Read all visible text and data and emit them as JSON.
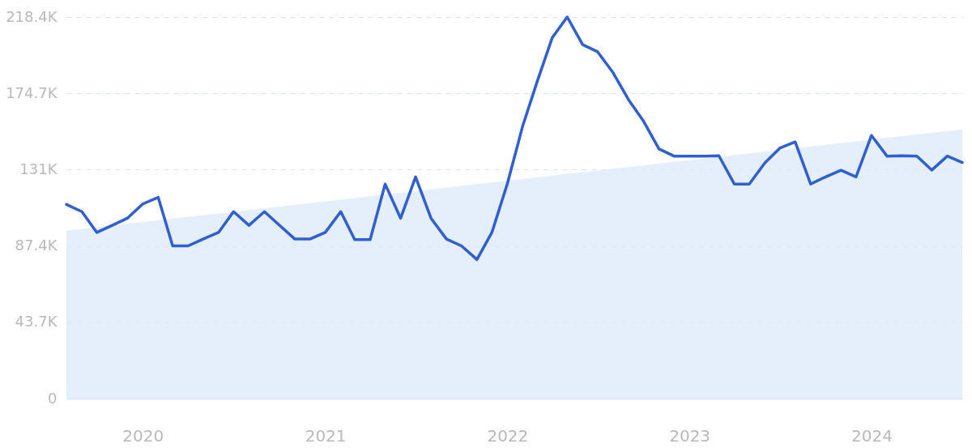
{
  "chart_data": {
    "type": "line",
    "x": [
      "2019-08",
      "2019-09",
      "2019-10",
      "2019-11",
      "2019-12",
      "2020-01",
      "2020-02",
      "2020-03",
      "2020-04",
      "2020-05",
      "2020-06",
      "2020-07",
      "2020-08",
      "2020-09",
      "2020-10",
      "2020-11",
      "2020-12",
      "2021-01",
      "2021-02",
      "2021-03",
      "2021-04",
      "2021-05",
      "2021-06",
      "2021-07",
      "2021-08",
      "2021-09",
      "2021-10",
      "2021-11",
      "2021-12",
      "2022-01",
      "2022-02",
      "2022-03",
      "2022-04",
      "2022-05",
      "2022-06",
      "2022-07",
      "2022-08",
      "2022-09",
      "2022-10",
      "2022-11",
      "2022-12",
      "2023-01",
      "2023-02",
      "2023-03",
      "2023-04",
      "2023-05",
      "2023-06",
      "2023-07",
      "2023-08",
      "2023-09",
      "2023-10",
      "2023-11",
      "2023-12",
      "2024-01",
      "2024-02",
      "2024-03",
      "2024-04",
      "2024-05",
      "2024-06",
      "2024-07"
    ],
    "series": [
      {
        "type": "area",
        "color": "#dce9fb",
        "x": [
          "2019-08",
          "2024-07"
        ],
        "values": [
          96100,
          154100
        ]
      },
      {
        "type": "line",
        "color": "#2f5fd0",
        "values": [
          111100,
          107000,
          95100,
          99200,
          103200,
          111400,
          115200,
          87400,
          87400,
          91300,
          95100,
          107000,
          99200,
          107000,
          99200,
          91300,
          91300,
          95100,
          107000,
          91000,
          91000,
          122800,
          103200,
          126900,
          103200,
          91300,
          87400,
          79600,
          95100,
          123000,
          156300,
          180800,
          206600,
          218400,
          202600,
          198500,
          186500,
          171000,
          158800,
          142900,
          138800,
          138800,
          138800,
          139000,
          122800,
          122800,
          134800,
          143300,
          146900,
          122800,
          126900,
          130700,
          126900,
          150600,
          138800,
          139000,
          138800,
          130800,
          138800,
          135100
        ]
      }
    ],
    "xlim": [
      "2019-08",
      "2024-07"
    ],
    "xticks": [
      "2020",
      "2021",
      "2022",
      "2023",
      "2024"
    ],
    "ylim": [
      0,
      218400
    ],
    "yticks": [
      0,
      {
        "value": 43700,
        "label": "43.7K"
      },
      {
        "value": 87400,
        "label": "87.4K"
      },
      {
        "value": 131000,
        "label": "131K"
      },
      {
        "value": 174700,
        "label": "174.7K"
      },
      {
        "value": 218400,
        "label": "218.4K"
      }
    ],
    "grid": "y"
  }
}
